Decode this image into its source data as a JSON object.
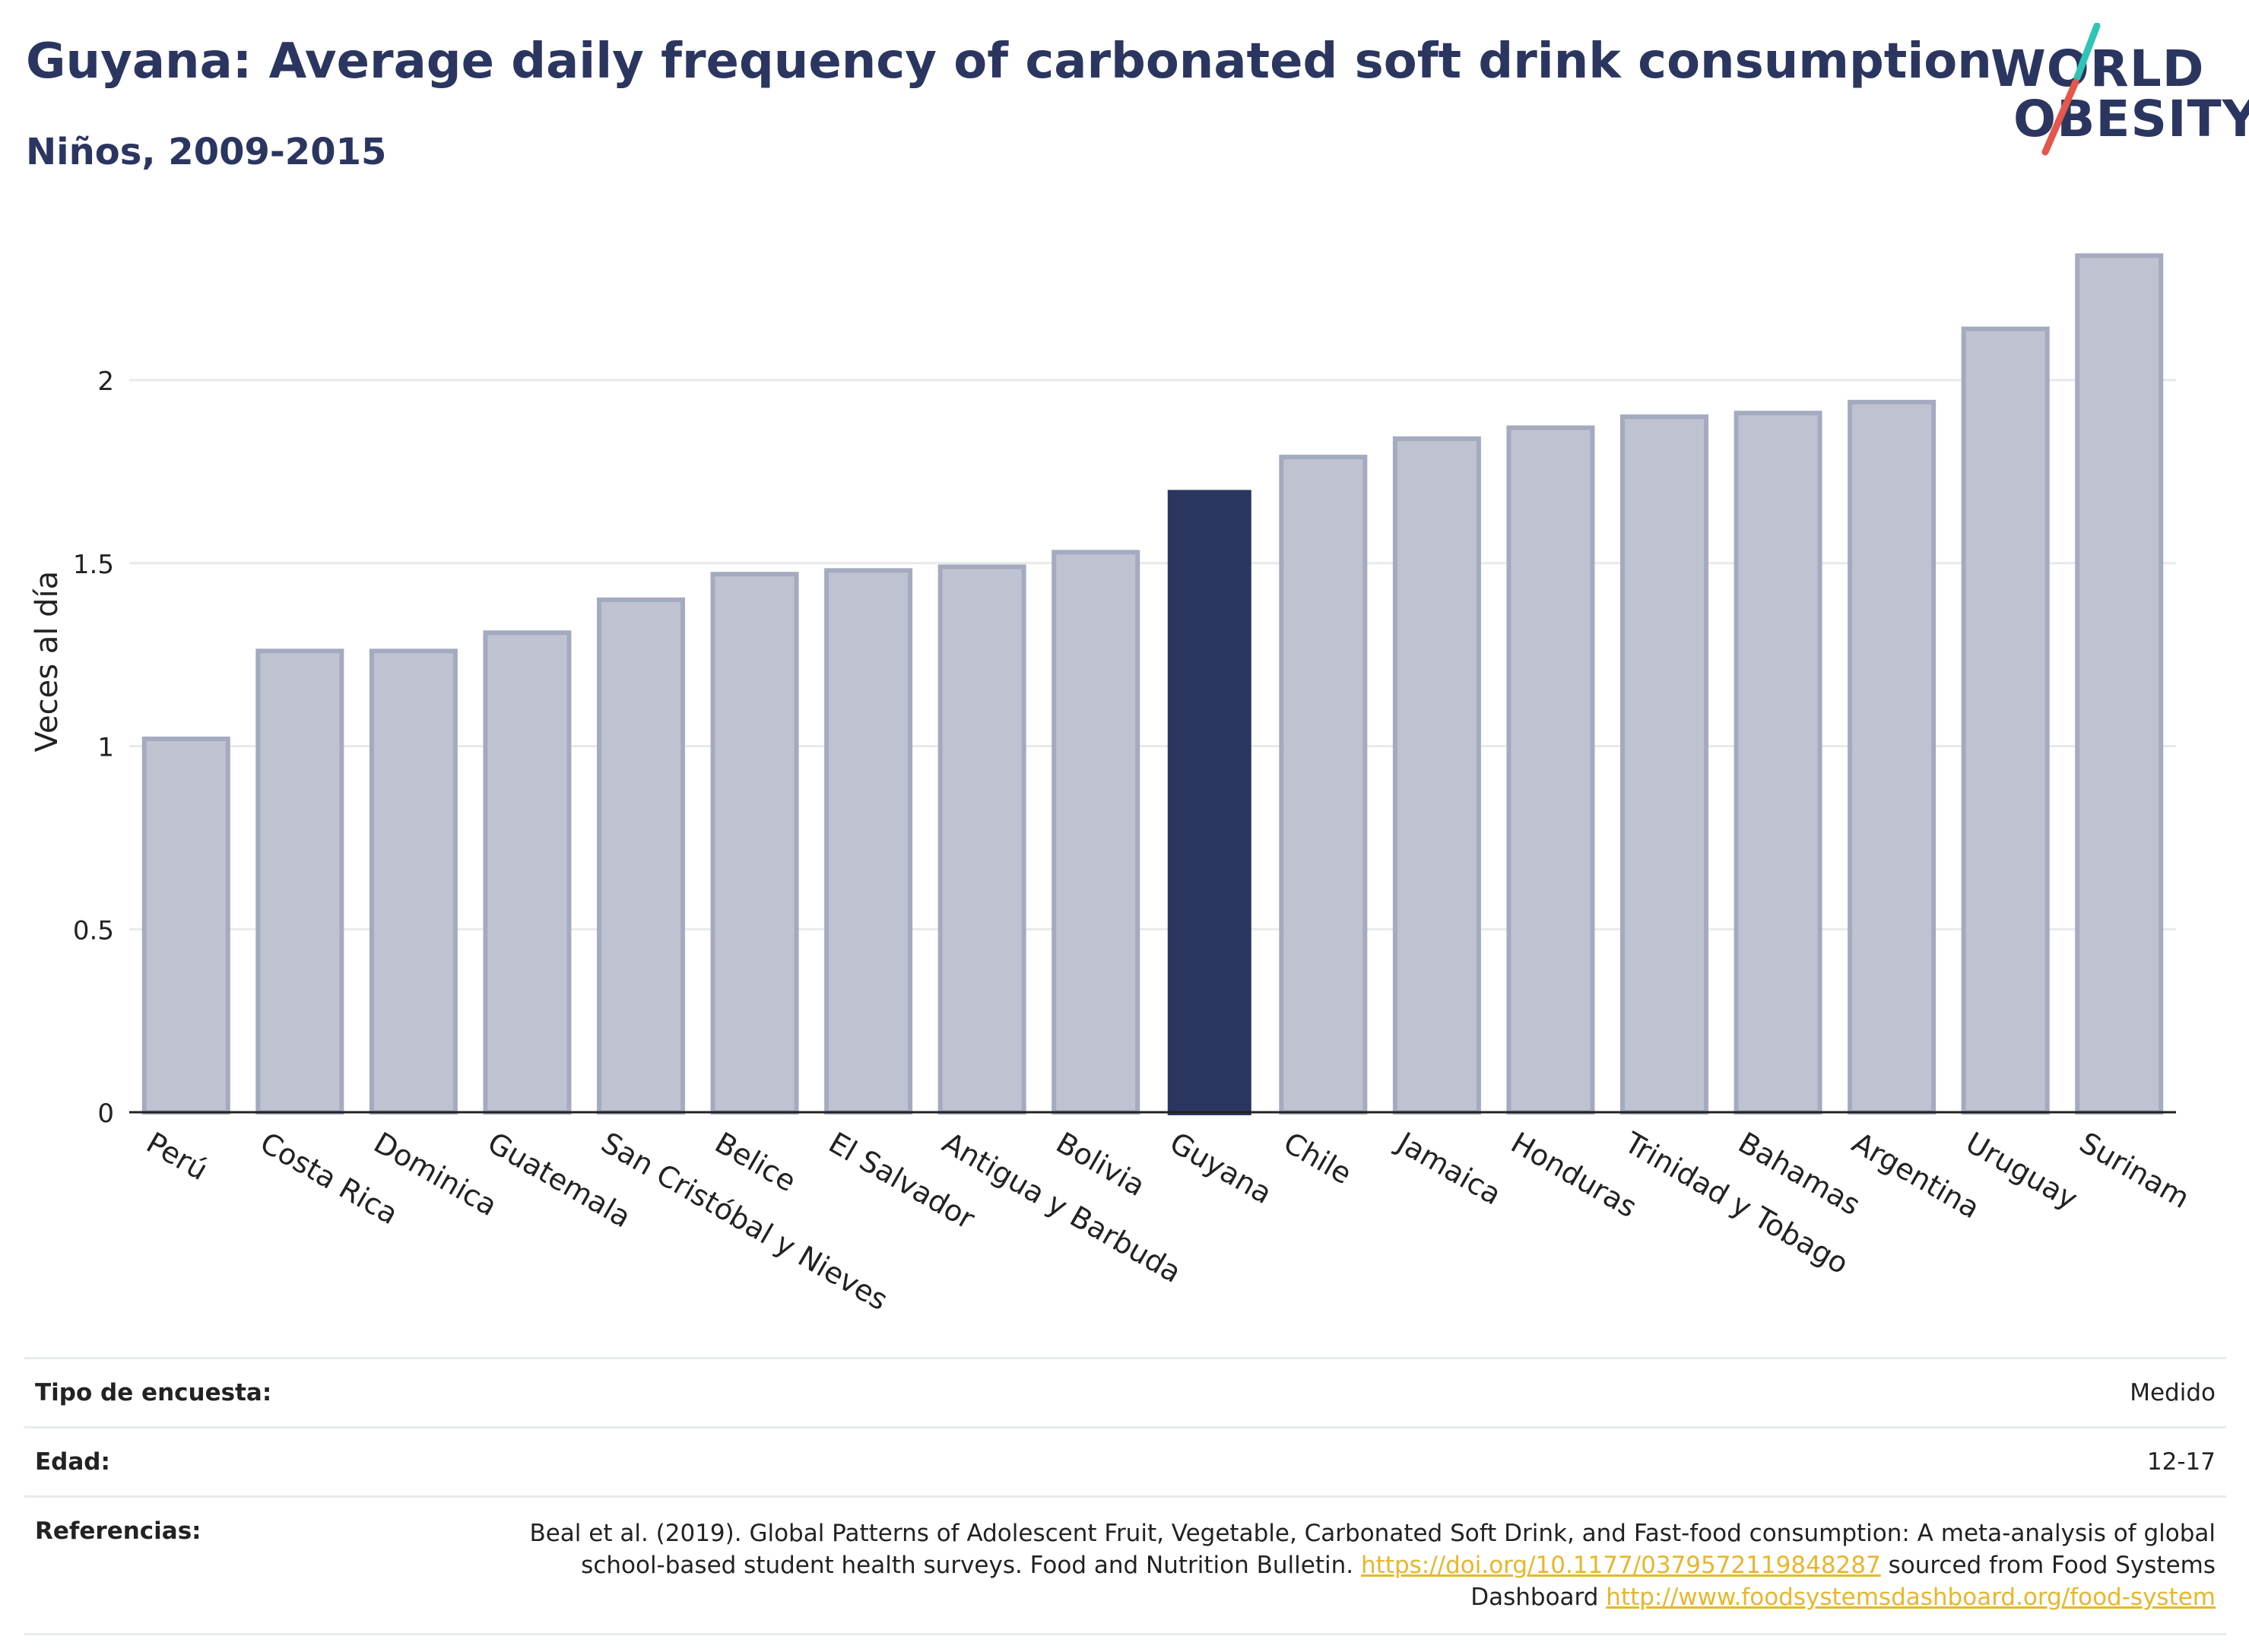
{
  "header": {
    "title": "Guyana: Average daily frequency of carbonated soft drink consumption",
    "subtitle": "Niños, 2009-2015"
  },
  "logo": {
    "line1": "WORLD",
    "line2": "OBESITY",
    "colors": {
      "text": "#2b3660",
      "slash_teal": "#2ec4b6",
      "slash_red": "#e4574b"
    }
  },
  "colors": {
    "highlight": "#2b3660",
    "bar": "#bfc3d1",
    "bar_border": "#a4aabf",
    "grid": "#e8eaea",
    "axis": "#222222"
  },
  "chart_data": {
    "type": "bar",
    "title": "Guyana: Average daily frequency of carbonated soft drink consumption",
    "ylabel": "Veces al día",
    "xlabel": "",
    "ylim": [
      0,
      2.4
    ],
    "yticks": [
      0,
      0.5,
      1,
      1.5,
      2
    ],
    "ytick_labels": [
      "0",
      "0.5",
      "1",
      "1.5",
      "2"
    ],
    "grid": true,
    "categories": [
      "Perú",
      "Costa Rica",
      "Dominica",
      "Guatemala",
      "San Cristóbal y Nieves",
      "Belice",
      "El Salvador",
      "Antigua y Barbuda",
      "Bolivia",
      "Guyana",
      "Chile",
      "Jamaica",
      "Honduras",
      "Trinidad y Tobago",
      "Bahamas",
      "Argentina",
      "Uruguay",
      "Surinam"
    ],
    "values": [
      1.02,
      1.26,
      1.26,
      1.31,
      1.4,
      1.47,
      1.48,
      1.49,
      1.53,
      1.7,
      1.79,
      1.84,
      1.87,
      1.9,
      1.91,
      1.94,
      2.14,
      2.34
    ],
    "highlight": "Guyana"
  },
  "meta": {
    "survey_label": "Tipo de encuesta:",
    "survey_value": "Medido",
    "age_label": "Edad:",
    "age_value": "12-17",
    "refs_label": "Referencias:",
    "refs_text1": "Beal et al. (2019). Global Patterns of Adolescent Fruit, Vegetable, Carbonated Soft Drink, and Fast-food consumption: A meta-analysis of global school-based student health surveys. Food and Nutrition Bulletin.",
    "refs_link1": "https://doi.org/10.1177/0379572119848287",
    "refs_text2": "sourced from Food Systems Dashboard",
    "refs_link2": "http://www.foodsystemsdashboard.org/food-system"
  }
}
